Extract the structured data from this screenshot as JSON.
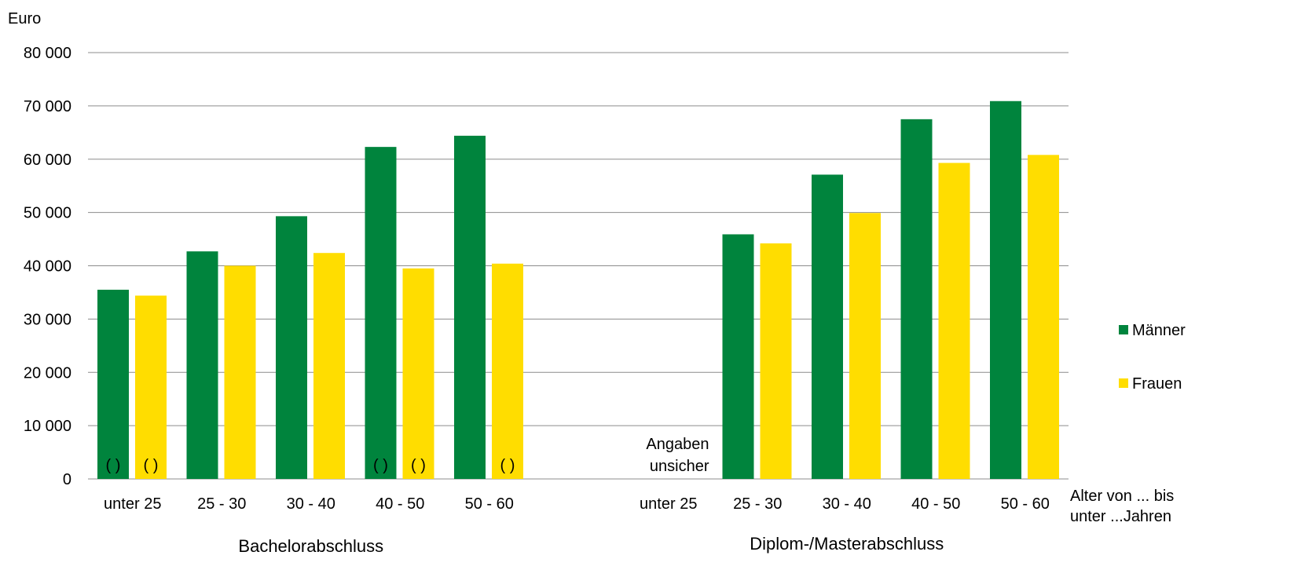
{
  "chart_data": {
    "type": "bar",
    "ylabel": "Euro",
    "xlabel": [
      "Alter von ... bis",
      "unter ...Jahren"
    ],
    "ylim": [
      0,
      80000
    ],
    "yticks": [
      0,
      10000,
      20000,
      30000,
      40000,
      50000,
      60000,
      70000,
      80000
    ],
    "ytick_labels": [
      "0",
      "10 000",
      "20 000",
      "30 000",
      "40 000",
      "50 000",
      "60 000",
      "70 000",
      "80 000"
    ],
    "grid": true,
    "legend": "right",
    "groups": [
      {
        "name": "Bachelorabschluss",
        "categories": [
          "unter 25",
          "25 - 30",
          "30 - 40",
          "40 - 50",
          "50 - 60"
        ],
        "series": [
          {
            "name": "Männer",
            "values": [
              35500,
              42700,
              49300,
              62300,
              64400
            ],
            "flags": [
              "( )",
              "",
              "",
              "( )",
              ""
            ]
          },
          {
            "name": "Frauen",
            "values": [
              34400,
              40000,
              42400,
              39500,
              40400
            ],
            "flags": [
              "( )",
              "",
              "",
              "( )",
              "( )"
            ]
          }
        ]
      },
      {
        "name": "Diplom-/Masterabschluss",
        "categories": [
          "unter 25",
          "25 - 30",
          "30 - 40",
          "40 - 50",
          "50 - 60"
        ],
        "series": [
          {
            "name": "Männer",
            "values": [
              null,
              45900,
              57100,
              67500,
              70900
            ],
            "flags": [
              "",
              "",
              "",
              "",
              ""
            ]
          },
          {
            "name": "Frauen",
            "values": [
              null,
              44200,
              49900,
              59300,
              60800
            ],
            "flags": [
              "",
              "",
              "",
              "",
              ""
            ]
          }
        ]
      }
    ],
    "annotations": [
      {
        "text": [
          "Angaben",
          "unsicher"
        ],
        "group": 1,
        "category": 0
      }
    ],
    "colors": {
      "Männer": "#00843d",
      "Frauen": "#ffdd00",
      "grid": "#8c8c8c"
    }
  }
}
